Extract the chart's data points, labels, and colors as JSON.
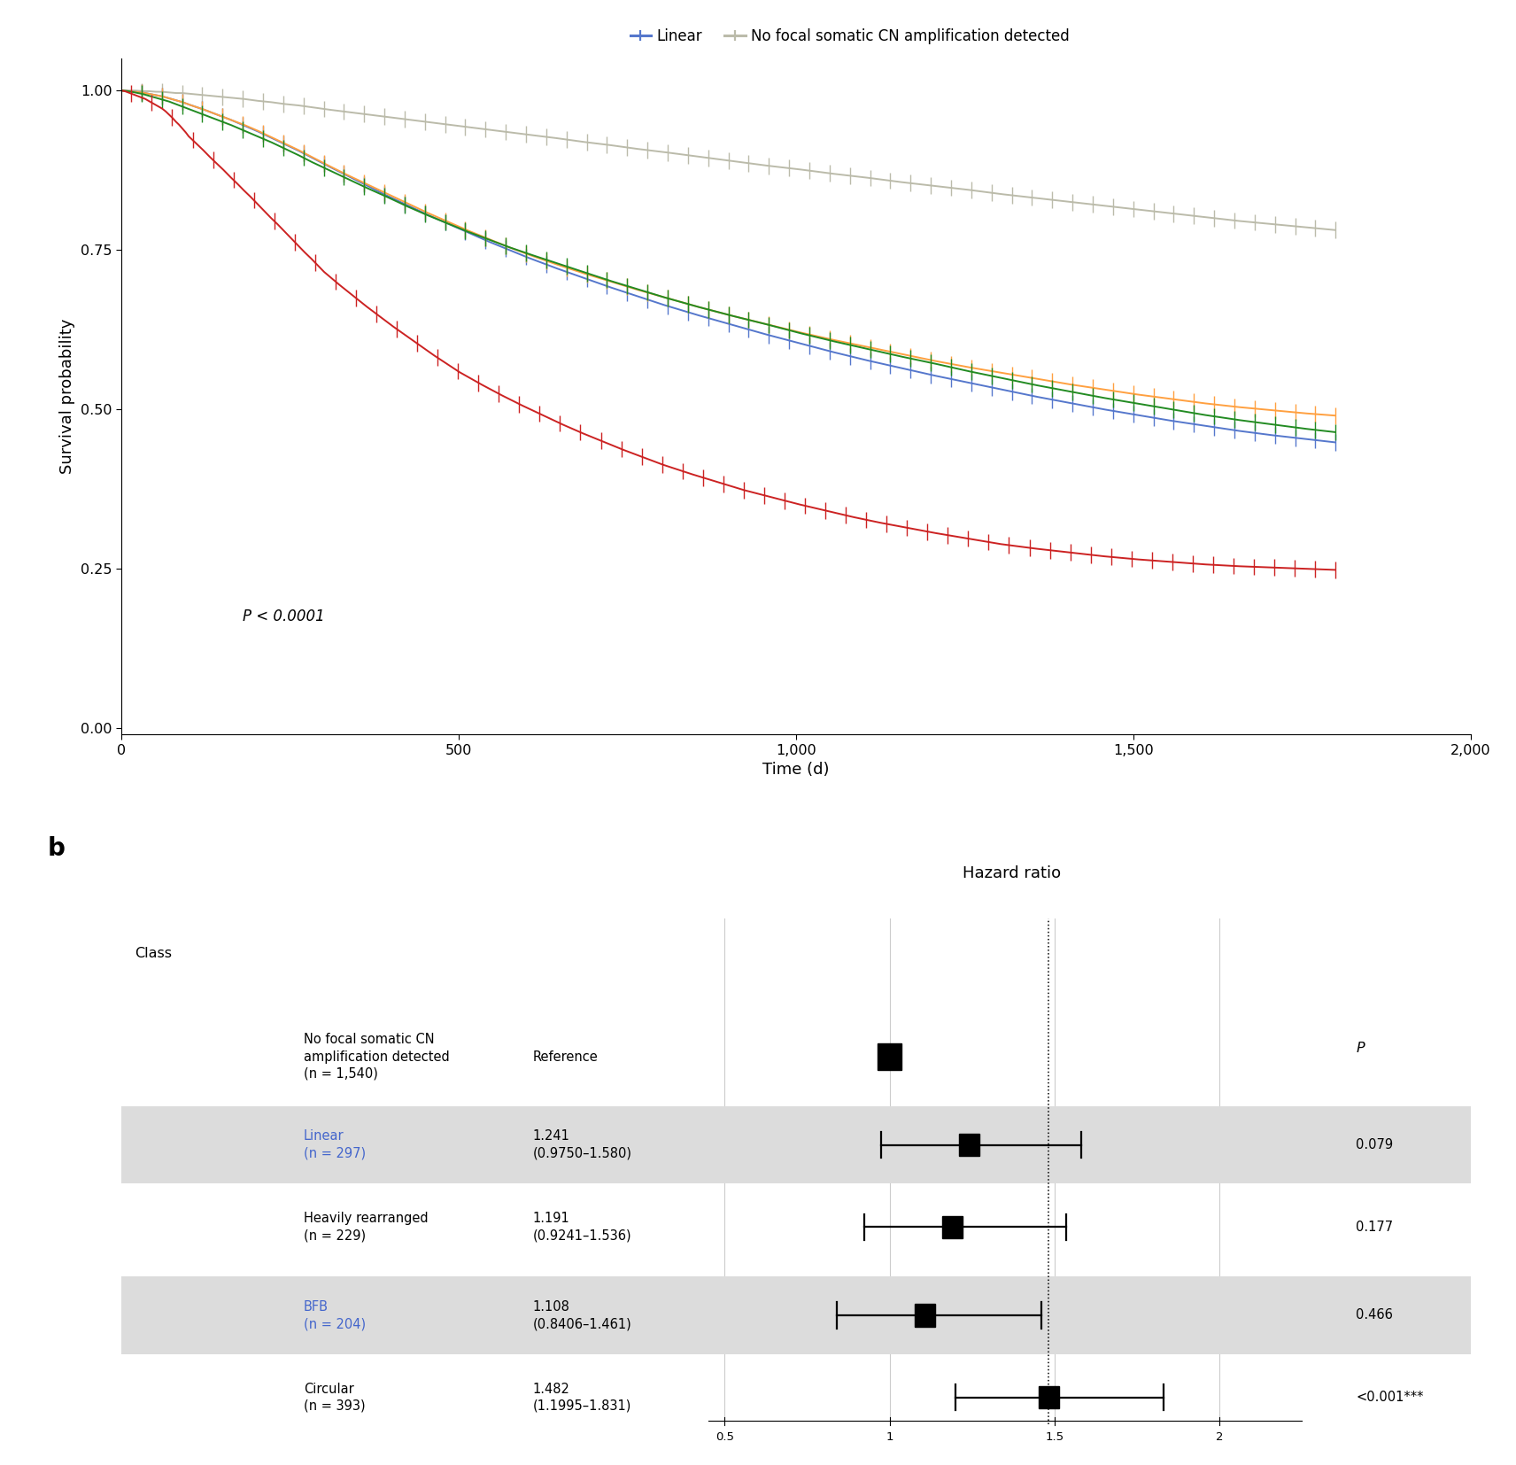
{
  "km_curves": {
    "circular": {
      "color": "#CC2222",
      "label": "Circular",
      "times": [
        0,
        5,
        10,
        15,
        20,
        25,
        30,
        35,
        40,
        45,
        50,
        55,
        60,
        65,
        70,
        75,
        80,
        85,
        90,
        95,
        100,
        110,
        120,
        130,
        140,
        150,
        160,
        170,
        180,
        190,
        200,
        210,
        220,
        230,
        240,
        250,
        260,
        270,
        280,
        290,
        300,
        320,
        340,
        360,
        380,
        400,
        420,
        440,
        460,
        480,
        500,
        530,
        560,
        590,
        620,
        650,
        680,
        710,
        740,
        770,
        800,
        840,
        880,
        920,
        960,
        1000,
        1040,
        1080,
        1120,
        1160,
        1200,
        1250,
        1300,
        1350,
        1400,
        1450,
        1500,
        1550,
        1600,
        1650,
        1700,
        1750,
        1800
      ],
      "surv": [
        1.0,
        0.999,
        0.997,
        0.995,
        0.993,
        0.991,
        0.989,
        0.987,
        0.984,
        0.981,
        0.978,
        0.975,
        0.972,
        0.968,
        0.963,
        0.958,
        0.952,
        0.947,
        0.941,
        0.935,
        0.928,
        0.918,
        0.908,
        0.897,
        0.887,
        0.877,
        0.866,
        0.856,
        0.845,
        0.835,
        0.824,
        0.813,
        0.802,
        0.792,
        0.781,
        0.77,
        0.759,
        0.748,
        0.738,
        0.727,
        0.716,
        0.698,
        0.681,
        0.664,
        0.648,
        0.632,
        0.617,
        0.602,
        0.587,
        0.573,
        0.559,
        0.541,
        0.524,
        0.508,
        0.493,
        0.478,
        0.464,
        0.451,
        0.438,
        0.426,
        0.414,
        0.4,
        0.387,
        0.374,
        0.363,
        0.352,
        0.342,
        0.332,
        0.323,
        0.315,
        0.307,
        0.298,
        0.289,
        0.282,
        0.276,
        0.27,
        0.265,
        0.261,
        0.257,
        0.254,
        0.252,
        0.25,
        0.248
      ]
    },
    "bfb": {
      "color": "#228B22",
      "label": "BFB",
      "times": [
        0,
        10,
        20,
        30,
        40,
        50,
        60,
        70,
        80,
        90,
        100,
        120,
        140,
        160,
        180,
        200,
        220,
        240,
        260,
        280,
        300,
        330,
        360,
        390,
        420,
        450,
        480,
        510,
        540,
        570,
        600,
        640,
        680,
        720,
        760,
        800,
        850,
        900,
        950,
        1000,
        1050,
        1100,
        1150,
        1200,
        1250,
        1300,
        1350,
        1400,
        1450,
        1500,
        1550,
        1600,
        1650,
        1700,
        1750,
        1800
      ],
      "surv": [
        1.0,
        0.999,
        0.997,
        0.995,
        0.992,
        0.989,
        0.986,
        0.983,
        0.979,
        0.975,
        0.971,
        0.963,
        0.955,
        0.947,
        0.938,
        0.929,
        0.92,
        0.91,
        0.9,
        0.889,
        0.879,
        0.864,
        0.849,
        0.835,
        0.82,
        0.806,
        0.793,
        0.78,
        0.768,
        0.756,
        0.745,
        0.731,
        0.717,
        0.703,
        0.69,
        0.677,
        0.662,
        0.648,
        0.635,
        0.621,
        0.608,
        0.596,
        0.584,
        0.573,
        0.561,
        0.55,
        0.539,
        0.529,
        0.519,
        0.51,
        0.501,
        0.492,
        0.484,
        0.477,
        0.47,
        0.464
      ]
    },
    "heavily_rearranged": {
      "color": "#FFA040",
      "label": "Heavily rearranged",
      "times": [
        0,
        10,
        20,
        30,
        40,
        50,
        60,
        70,
        80,
        90,
        100,
        120,
        140,
        160,
        180,
        200,
        220,
        240,
        260,
        280,
        300,
        330,
        360,
        390,
        420,
        450,
        480,
        510,
        540,
        570,
        600,
        640,
        680,
        720,
        760,
        800,
        850,
        900,
        950,
        1000,
        1050,
        1100,
        1150,
        1200,
        1250,
        1300,
        1350,
        1400,
        1450,
        1500,
        1550,
        1600,
        1650,
        1700,
        1750,
        1800
      ],
      "surv": [
        1.0,
        0.999,
        0.998,
        0.997,
        0.995,
        0.993,
        0.991,
        0.988,
        0.985,
        0.982,
        0.978,
        0.971,
        0.963,
        0.955,
        0.947,
        0.938,
        0.928,
        0.918,
        0.908,
        0.897,
        0.886,
        0.87,
        0.855,
        0.84,
        0.825,
        0.81,
        0.796,
        0.782,
        0.769,
        0.756,
        0.744,
        0.729,
        0.715,
        0.702,
        0.689,
        0.677,
        0.662,
        0.648,
        0.635,
        0.622,
        0.61,
        0.599,
        0.588,
        0.577,
        0.567,
        0.558,
        0.549,
        0.54,
        0.532,
        0.524,
        0.517,
        0.51,
        0.504,
        0.499,
        0.494,
        0.49
      ]
    },
    "linear": {
      "color": "#5577CC",
      "label": "Linear",
      "times": [
        0,
        10,
        20,
        30,
        40,
        50,
        60,
        70,
        80,
        90,
        100,
        120,
        140,
        160,
        180,
        200,
        220,
        240,
        260,
        280,
        300,
        330,
        360,
        390,
        420,
        450,
        480,
        510,
        540,
        570,
        600,
        640,
        680,
        720,
        760,
        800,
        850,
        900,
        950,
        1000,
        1050,
        1100,
        1150,
        1200,
        1250,
        1300,
        1350,
        1400,
        1450,
        1500,
        1550,
        1600,
        1650,
        1700,
        1750,
        1800
      ],
      "surv": [
        1.0,
        0.999,
        0.998,
        0.997,
        0.995,
        0.993,
        0.991,
        0.988,
        0.985,
        0.982,
        0.978,
        0.971,
        0.963,
        0.955,
        0.946,
        0.937,
        0.927,
        0.917,
        0.907,
        0.896,
        0.885,
        0.869,
        0.853,
        0.837,
        0.822,
        0.807,
        0.793,
        0.779,
        0.765,
        0.752,
        0.739,
        0.723,
        0.708,
        0.693,
        0.679,
        0.665,
        0.649,
        0.634,
        0.619,
        0.605,
        0.591,
        0.578,
        0.566,
        0.554,
        0.543,
        0.532,
        0.521,
        0.511,
        0.501,
        0.492,
        0.483,
        0.475,
        0.467,
        0.46,
        0.454,
        0.448
      ]
    },
    "no_focal": {
      "color": "#BBBBAA",
      "label": "No focal somatic CN amplification detected",
      "times": [
        0,
        10,
        20,
        30,
        40,
        50,
        60,
        70,
        80,
        90,
        100,
        120,
        140,
        160,
        180,
        200,
        220,
        240,
        260,
        280,
        300,
        330,
        360,
        390,
        420,
        450,
        480,
        510,
        540,
        570,
        600,
        640,
        680,
        720,
        760,
        800,
        850,
        900,
        950,
        1000,
        1050,
        1100,
        1150,
        1200,
        1250,
        1300,
        1350,
        1400,
        1450,
        1500,
        1550,
        1600,
        1650,
        1700,
        1750,
        1800
      ],
      "surv": [
        1.0,
        1.0,
        1.0,
        0.999,
        0.999,
        0.998,
        0.998,
        0.997,
        0.996,
        0.996,
        0.995,
        0.993,
        0.991,
        0.989,
        0.987,
        0.984,
        0.982,
        0.979,
        0.977,
        0.974,
        0.971,
        0.967,
        0.963,
        0.959,
        0.955,
        0.951,
        0.947,
        0.943,
        0.939,
        0.935,
        0.931,
        0.926,
        0.92,
        0.915,
        0.909,
        0.904,
        0.897,
        0.89,
        0.883,
        0.877,
        0.87,
        0.864,
        0.857,
        0.851,
        0.845,
        0.838,
        0.832,
        0.826,
        0.82,
        0.814,
        0.808,
        0.802,
        0.796,
        0.791,
        0.786,
        0.781
      ]
    }
  },
  "forest_plot": {
    "title": "Hazard ratio",
    "col_header_class": "Class",
    "col_header_p": "P",
    "rows": [
      {
        "label": "No focal somatic CN\namplification detected\n(n = 1,540)",
        "hr_text": "Reference",
        "hr": 1.0,
        "ci_lo": null,
        "ci_hi": null,
        "p_text": "",
        "shade": false,
        "label_color": "black"
      },
      {
        "label": "Linear\n(n = 297)",
        "hr_text": "1.241\n(0.9750–1.580)",
        "hr": 1.241,
        "ci_lo": 0.975,
        "ci_hi": 1.58,
        "p_text": "0.079",
        "shade": true,
        "label_color": "#4466CC"
      },
      {
        "label": "Heavily rearranged\n(n = 229)",
        "hr_text": "1.191\n(0.9241–1.536)",
        "hr": 1.191,
        "ci_lo": 0.9241,
        "ci_hi": 1.536,
        "p_text": "0.177",
        "shade": false,
        "label_color": "black"
      },
      {
        "label": "BFB\n(n = 204)",
        "hr_text": "1.108\n(0.8406–1.461)",
        "hr": 1.108,
        "ci_lo": 0.8406,
        "ci_hi": 1.461,
        "p_text": "0.466",
        "shade": true,
        "label_color": "#4466CC"
      },
      {
        "label": "Circular\n(n = 393)",
        "hr_text": "1.482\n(1.1995–1.831)",
        "hr": 1.482,
        "ci_lo": 1.1995,
        "ci_hi": 1.831,
        "p_text": "<0.001***",
        "shade": false,
        "label_color": "black"
      }
    ],
    "dotted_line_x": 1.482
  },
  "p_text": "P < 0.0001",
  "xlabel": "Time (d)",
  "ylabel": "Survival probability",
  "km_xlim": [
    0,
    2000
  ],
  "km_ylim": [
    -0.01,
    1.05
  ],
  "km_xticks": [
    0,
    500,
    1000,
    1500,
    2000
  ],
  "km_yticks": [
    0,
    0.25,
    0.5,
    0.75,
    1.0
  ],
  "legend_row1": [
    "circular",
    "bfb",
    "heavily_rearranged"
  ],
  "legend_row2": [
    "linear",
    "no_focal"
  ]
}
